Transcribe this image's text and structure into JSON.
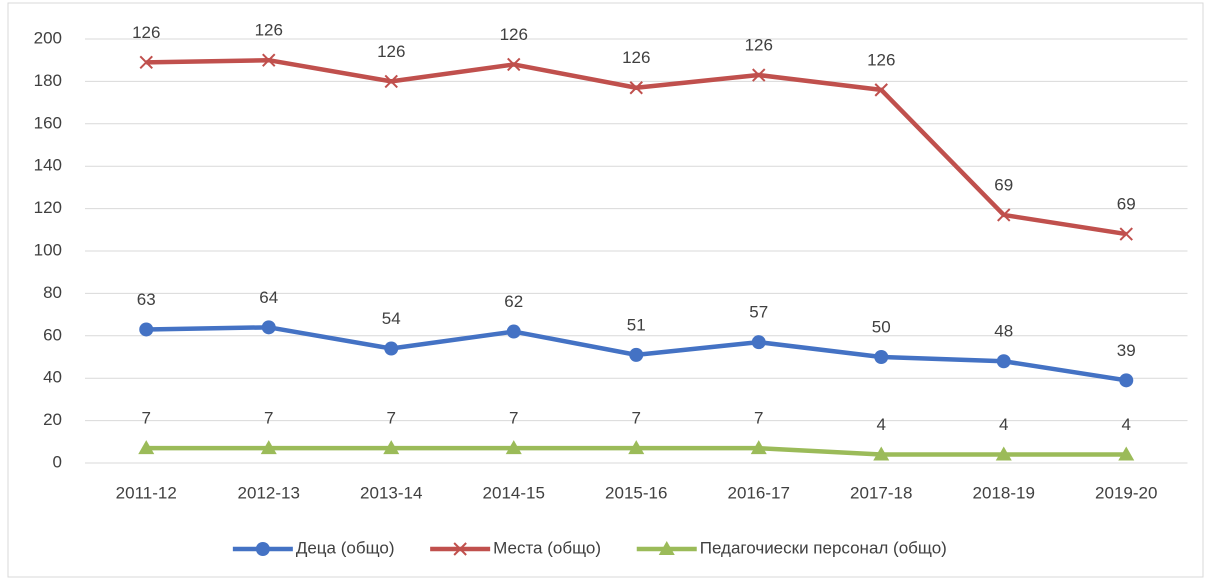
{
  "chart_data": {
    "type": "line",
    "categories": [
      "2011-12",
      "2012-13",
      "2013-14",
      "2014-15",
      "2015-16",
      "2016-17",
      "2017-18",
      "2018-19",
      "2019-20"
    ],
    "series": [
      {
        "name": "Деца (общо)",
        "color": "#4472c4",
        "marker": "circle",
        "values": [
          63,
          64,
          54,
          62,
          51,
          57,
          50,
          48,
          39
        ]
      },
      {
        "name": "Места (общо)",
        "color": "#c0504d",
        "marker": "x",
        "stacked": true,
        "values": [
          126,
          126,
          126,
          126,
          126,
          126,
          126,
          69,
          69
        ]
      },
      {
        "name": "Педагочиески персонал (общо)",
        "color": "#9bbb59",
        "marker": "triangle",
        "values": [
          7,
          7,
          7,
          7,
          7,
          7,
          4,
          4,
          4
        ]
      }
    ],
    "ylim": [
      0,
      200
    ],
    "yticks": [
      0,
      20,
      40,
      60,
      80,
      100,
      120,
      140,
      160,
      180,
      200
    ],
    "grid": true,
    "legend": "bottom"
  }
}
